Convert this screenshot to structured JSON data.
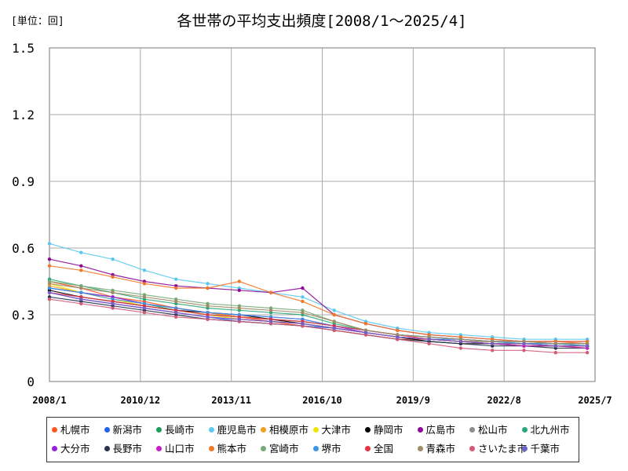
{
  "header": {
    "unit_label": "[単位：回]",
    "title": "各世帯の平均支出頻度[2008/1～2025/4]"
  },
  "chart_data": {
    "type": "line",
    "title": "各世帯の平均支出頻度[2008/1～2025/4]",
    "ylabel": "[単位：回]",
    "xlabel": "",
    "ylim": [
      0,
      1.5
    ],
    "yticks": [
      "0",
      "0.3",
      "0.6",
      "0.9",
      "1.2",
      "1.5"
    ],
    "xticks": [
      "2008/1",
      "2010/12",
      "2013/11",
      "2016/10",
      "2019/9",
      "2022/8",
      "2025/7"
    ],
    "x_start": "2008/1",
    "x_end": "2025/4",
    "grid": true,
    "legend_position": "bottom",
    "marker": "dot",
    "series": [
      {
        "name": "札幌市",
        "color": "#ff5722",
        "values": [
          0.45,
          0.42,
          0.38,
          0.36,
          0.33,
          0.31,
          0.29,
          0.27,
          0.25,
          0.23,
          0.21,
          0.19,
          0.19,
          0.18,
          0.18,
          0.18,
          0.18,
          0.17
        ]
      },
      {
        "name": "新潟市",
        "color": "#1e64f0",
        "values": [
          0.4,
          0.37,
          0.35,
          0.33,
          0.31,
          0.29,
          0.27,
          0.26,
          0.25,
          0.24,
          0.22,
          0.2,
          0.19,
          0.19,
          0.18,
          0.18,
          0.17,
          0.17
        ]
      },
      {
        "name": "長崎市",
        "color": "#1a9f5c",
        "values": [
          0.42,
          0.4,
          0.38,
          0.35,
          0.32,
          0.3,
          0.29,
          0.28,
          0.27,
          0.25,
          0.23,
          0.21,
          0.2,
          0.19,
          0.18,
          0.17,
          0.17,
          0.16
        ]
      },
      {
        "name": "鹿児島市",
        "color": "#5ac8f0",
        "values": [
          0.62,
          0.58,
          0.55,
          0.5,
          0.46,
          0.44,
          0.42,
          0.4,
          0.38,
          0.32,
          0.27,
          0.24,
          0.22,
          0.21,
          0.2,
          0.19,
          0.19,
          0.19
        ]
      },
      {
        "name": "相模原市",
        "color": "#f0a020",
        "values": [
          0.43,
          0.4,
          0.37,
          0.35,
          0.33,
          0.31,
          0.29,
          0.28,
          0.26,
          0.24,
          0.22,
          0.2,
          0.19,
          0.18,
          0.17,
          0.16,
          0.16,
          0.15
        ]
      },
      {
        "name": "大津市",
        "color": "#f0e600",
        "values": [
          0.44,
          0.4,
          0.37,
          0.34,
          0.32,
          0.3,
          0.28,
          0.27,
          0.26,
          0.24,
          0.22,
          0.2,
          0.19,
          0.18,
          0.17,
          0.16,
          0.16,
          0.15
        ]
      },
      {
        "name": "静岡市",
        "color": "#000000",
        "values": [
          0.41,
          0.38,
          0.36,
          0.34,
          0.32,
          0.31,
          0.3,
          0.28,
          0.26,
          0.24,
          0.22,
          0.2,
          0.18,
          0.17,
          0.17,
          0.16,
          0.16,
          0.16
        ]
      },
      {
        "name": "広島市",
        "color": "#8c0a96",
        "values": [
          0.55,
          0.52,
          0.48,
          0.45,
          0.43,
          0.42,
          0.41,
          0.4,
          0.42,
          0.3,
          0.26,
          0.23,
          0.21,
          0.2,
          0.19,
          0.18,
          0.18,
          0.18
        ]
      },
      {
        "name": "松山市",
        "color": "#8c8c8c",
        "values": [
          0.4,
          0.37,
          0.35,
          0.33,
          0.31,
          0.29,
          0.28,
          0.27,
          0.26,
          0.24,
          0.22,
          0.2,
          0.19,
          0.18,
          0.18,
          0.17,
          0.17,
          0.16
        ]
      },
      {
        "name": "北九州市",
        "color": "#2aa87a",
        "values": [
          0.46,
          0.43,
          0.4,
          0.37,
          0.35,
          0.33,
          0.32,
          0.31,
          0.3,
          0.26,
          0.23,
          0.21,
          0.2,
          0.19,
          0.18,
          0.17,
          0.17,
          0.17
        ]
      },
      {
        "name": "大分市",
        "color": "#9620dc",
        "values": [
          0.42,
          0.4,
          0.38,
          0.35,
          0.33,
          0.31,
          0.3,
          0.29,
          0.28,
          0.25,
          0.22,
          0.2,
          0.19,
          0.18,
          0.17,
          0.17,
          0.16,
          0.16
        ]
      },
      {
        "name": "長野市",
        "color": "#283250",
        "values": [
          0.38,
          0.36,
          0.34,
          0.32,
          0.3,
          0.28,
          0.27,
          0.26,
          0.25,
          0.23,
          0.21,
          0.19,
          0.18,
          0.17,
          0.16,
          0.16,
          0.15,
          0.15
        ]
      },
      {
        "name": "山口市",
        "color": "#c81ec8",
        "values": [
          0.4,
          0.37,
          0.35,
          0.33,
          0.31,
          0.29,
          0.28,
          0.27,
          0.26,
          0.24,
          0.22,
          0.2,
          0.19,
          0.18,
          0.17,
          0.16,
          0.16,
          0.15
        ]
      },
      {
        "name": "熊本市",
        "color": "#f07828",
        "values": [
          0.52,
          0.5,
          0.47,
          0.44,
          0.42,
          0.42,
          0.45,
          0.4,
          0.36,
          0.3,
          0.26,
          0.23,
          0.21,
          0.2,
          0.19,
          0.18,
          0.18,
          0.18
        ]
      },
      {
        "name": "宮崎市",
        "color": "#78aa78",
        "values": [
          0.45,
          0.43,
          0.41,
          0.39,
          0.37,
          0.35,
          0.34,
          0.33,
          0.32,
          0.27,
          0.23,
          0.21,
          0.2,
          0.19,
          0.18,
          0.18,
          0.17,
          0.17
        ]
      },
      {
        "name": "堺市",
        "color": "#3c96e6",
        "values": [
          0.42,
          0.4,
          0.37,
          0.35,
          0.33,
          0.31,
          0.3,
          0.29,
          0.28,
          0.25,
          0.23,
          0.21,
          0.2,
          0.19,
          0.18,
          0.17,
          0.17,
          0.16
        ]
      },
      {
        "name": "全国",
        "color": "#e63246",
        "values": [
          0.4,
          0.38,
          0.36,
          0.34,
          0.32,
          0.3,
          0.29,
          0.28,
          0.27,
          0.25,
          0.23,
          0.21,
          0.19,
          0.18,
          0.17,
          0.17,
          0.16,
          0.16
        ]
      },
      {
        "name": "青森市",
        "color": "#a08c64",
        "values": [
          0.44,
          0.42,
          0.4,
          0.38,
          0.36,
          0.34,
          0.33,
          0.32,
          0.31,
          0.27,
          0.23,
          0.21,
          0.2,
          0.19,
          0.18,
          0.18,
          0.17,
          0.17
        ]
      },
      {
        "name": "さいたま市",
        "color": "#d25a78",
        "values": [
          0.37,
          0.35,
          0.33,
          0.31,
          0.29,
          0.28,
          0.27,
          0.26,
          0.25,
          0.23,
          0.21,
          0.19,
          0.17,
          0.15,
          0.14,
          0.14,
          0.13,
          0.13
        ]
      },
      {
        "name": "千葉市",
        "color": "#6e64c8",
        "values": [
          0.4,
          0.37,
          0.35,
          0.33,
          0.31,
          0.29,
          0.28,
          0.27,
          0.26,
          0.24,
          0.22,
          0.2,
          0.19,
          0.18,
          0.17,
          0.17,
          0.16,
          0.16
        ]
      }
    ]
  }
}
